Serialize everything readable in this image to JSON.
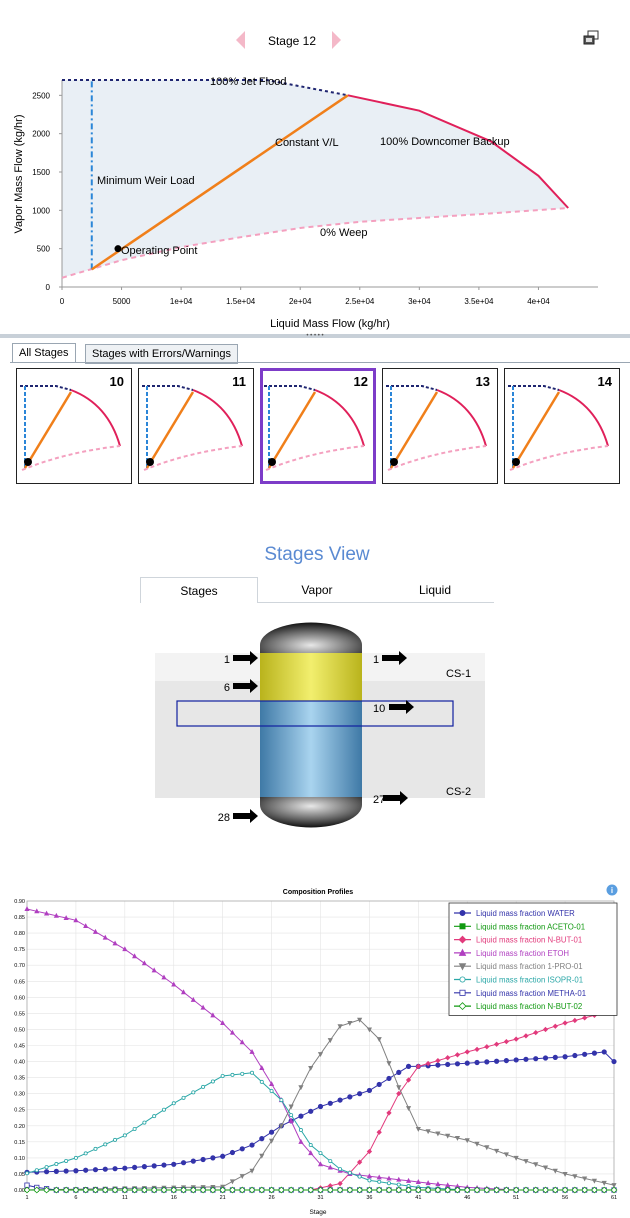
{
  "toolbar": {
    "stage_label": "Stage 12",
    "prev_icon": "chevron-left-icon",
    "next_icon": "chevron-right-icon",
    "export_icon": "export-icon"
  },
  "hydraulics": {
    "xlabel": "Liquid Mass Flow (kg/hr)",
    "ylabel": "Vapor Mass Flow (kg/hr)",
    "x_ticks": [
      "0",
      "5000",
      "1e+04",
      "1.5e+04",
      "2e+04",
      "2.5e+04",
      "3e+04",
      "3.5e+04",
      "4e+04"
    ],
    "y_ticks": [
      "0",
      "500",
      "1000",
      "1500",
      "2000",
      "2500"
    ],
    "labels": {
      "jet_flood": "100% Jet Flood",
      "downcomer": "100% Downcomer Backup",
      "constant_vl": "Constant V/L",
      "min_weir": "Minimum Weir Load",
      "operating_point": "Operating Point",
      "weep": "0% Weep"
    }
  },
  "stage_tabs": {
    "all": "All Stages",
    "errors": "Stages with Errors/Warnings"
  },
  "thumbnails": [
    "10",
    "11",
    "12",
    "13",
    "14"
  ],
  "selected_thumbnail": "12",
  "stages_view": {
    "title": "Stages View",
    "tabs": [
      "Stages",
      "Vapor",
      "Liquid"
    ],
    "streams": [
      "1",
      "6",
      "28",
      "1",
      "10",
      "27"
    ],
    "sections": [
      "CS-1",
      "CS-2"
    ]
  },
  "composition": {
    "info_icon": "info-icon"
  },
  "chart_data": [
    {
      "type": "line",
      "title": "",
      "xlabel": "Liquid Mass Flow (kg/hr)",
      "ylabel": "Vapor Mass Flow (kg/hr)",
      "xlim": [
        0,
        45000
      ],
      "ylim": [
        0,
        2700
      ],
      "series": [
        {
          "name": "100% Jet Flood",
          "x": [
            2500,
            17200,
            24000
          ],
          "y": [
            2700,
            2700,
            2500
          ]
        },
        {
          "name": "100% Downcomer Backup",
          "x": [
            24000,
            30000,
            36000,
            40000,
            42500
          ],
          "y": [
            2500,
            2300,
            1900,
            1450,
            1030
          ]
        },
        {
          "name": "0% Weep",
          "x": [
            0,
            5000,
            10000,
            15000,
            20000,
            25000,
            30000,
            35000,
            42500
          ],
          "y": [
            120,
            350,
            520,
            650,
            770,
            850,
            900,
            950,
            1030
          ]
        },
        {
          "name": "Minimum Weir Load",
          "x": [
            2500,
            2500
          ],
          "y": [
            230,
            2700
          ]
        },
        {
          "name": "Constant V/L",
          "x": [
            2500,
            24000
          ],
          "y": [
            230,
            2500
          ]
        }
      ],
      "operating_point": {
        "x": 4700,
        "y": 500
      }
    },
    {
      "type": "line",
      "title": "Composition Profiles",
      "xlabel": "Stage",
      "ylabel": "",
      "xlim": [
        1,
        61
      ],
      "ylim": [
        0,
        0.9
      ],
      "x_ticks": [
        "1",
        "6",
        "11",
        "16",
        "21",
        "26",
        "31",
        "36",
        "41",
        "46",
        "51",
        "56",
        "61"
      ],
      "y_ticks": [
        "0.00",
        "0.05",
        "0.10",
        "0.15",
        "0.20",
        "0.25",
        "0.30",
        "0.35",
        "0.40",
        "0.45",
        "0.50",
        "0.55",
        "0.60",
        "0.65",
        "0.70",
        "0.75",
        "0.80",
        "0.85",
        "0.90"
      ],
      "series": [
        {
          "name": "Liquid mass fraction WATER",
          "color": "#3333aa",
          "marker": "circle",
          "x": [
            1,
            6,
            11,
            16,
            21,
            24,
            27,
            31,
            36,
            40,
            41,
            46,
            51,
            56,
            60,
            61
          ],
          "y": [
            0.055,
            0.06,
            0.068,
            0.08,
            0.105,
            0.14,
            0.2,
            0.26,
            0.31,
            0.385,
            0.385,
            0.395,
            0.405,
            0.415,
            0.43,
            0.4
          ]
        },
        {
          "name": "Liquid mass fraction ACETO-01",
          "color": "#119911",
          "marker": "square",
          "x": [
            1,
            61
          ],
          "y": [
            0.0,
            0.0
          ]
        },
        {
          "name": "Liquid mass fraction N-BUT-01",
          "color": "#e23a7c",
          "marker": "diamond",
          "x": [
            1,
            30,
            33,
            36,
            39,
            41,
            46,
            51,
            56,
            61
          ],
          "y": [
            0.0,
            0.0,
            0.02,
            0.12,
            0.3,
            0.385,
            0.43,
            0.47,
            0.52,
            0.56
          ]
        },
        {
          "name": "Liquid mass fraction ETOH",
          "color": "#b03fc0",
          "marker": "triangle-up",
          "x": [
            1,
            6,
            11,
            16,
            21,
            24,
            27,
            29,
            31,
            34,
            41,
            46,
            51,
            61
          ],
          "y": [
            0.875,
            0.84,
            0.75,
            0.64,
            0.52,
            0.43,
            0.28,
            0.15,
            0.08,
            0.05,
            0.025,
            0.008,
            0.0,
            0.0
          ]
        },
        {
          "name": "Liquid mass fraction 1-PRO-01",
          "color": "#808080",
          "marker": "triangle-down",
          "x": [
            1,
            21,
            24,
            27,
            30,
            33,
            35,
            37,
            39,
            41,
            46,
            51,
            56,
            61
          ],
          "y": [
            0.0,
            0.01,
            0.06,
            0.2,
            0.38,
            0.51,
            0.53,
            0.47,
            0.32,
            0.19,
            0.155,
            0.1,
            0.05,
            0.015
          ]
        },
        {
          "name": "Liquid mass fraction ISOPR-01",
          "color": "#2aa7a7",
          "marker": "circle-open",
          "x": [
            1,
            6,
            11,
            16,
            21,
            24,
            27,
            30,
            33,
            36,
            41,
            46,
            61
          ],
          "y": [
            0.052,
            0.1,
            0.17,
            0.27,
            0.355,
            0.365,
            0.28,
            0.14,
            0.065,
            0.03,
            0.008,
            0.0,
            0.0
          ]
        },
        {
          "name": "Liquid mass fraction METHA-01",
          "color": "#3333aa",
          "marker": "square-open",
          "x": [
            1,
            2,
            4,
            61
          ],
          "y": [
            0.015,
            0.008,
            0.0,
            0.0
          ]
        },
        {
          "name": "Liquid mass fraction N-BUT-02",
          "color": "#119911",
          "marker": "diamond-open",
          "x": [
            1,
            61
          ],
          "y": [
            0.0,
            0.0
          ]
        }
      ]
    }
  ]
}
